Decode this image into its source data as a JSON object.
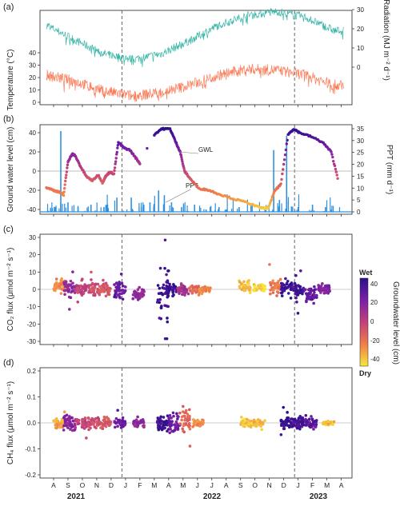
{
  "panel_labels": [
    "(a)",
    "(b)",
    "(c)",
    "(d)"
  ],
  "months": [
    "A",
    "S",
    "O",
    "N",
    "D",
    "J",
    "F",
    "M",
    "A",
    "M",
    "J",
    "J",
    "A",
    "S",
    "O",
    "N",
    "D",
    "J",
    "F",
    "M",
    "A"
  ],
  "years": [
    "2021",
    "2022",
    "2023"
  ],
  "colorbar": {
    "top_label": "Wet",
    "bottom_label": "Dry",
    "title": "Groundwater level (cm)",
    "ticks": [
      "40",
      "20",
      "0",
      "-20",
      "-40"
    ],
    "range": [
      -45,
      45
    ]
  },
  "chart_data": [
    {
      "type": "line",
      "panel": "(a)",
      "series": [
        {
          "name": "Radiation",
          "color": "#3bb6a8",
          "axis": "right",
          "x": [
            0,
            2,
            4,
            6,
            8,
            10,
            12,
            14,
            16,
            18,
            20
          ],
          "values": [
            22,
            14,
            7,
            4,
            7,
            14,
            22,
            27,
            29,
            26,
            19
          ]
        },
        {
          "name": "Temperature",
          "color": "#fb7b58",
          "axis": "left",
          "x": [
            0,
            2,
            4,
            6,
            8,
            10,
            12,
            14,
            16,
            18,
            20
          ],
          "values": [
            22,
            17,
            9,
            5,
            8,
            14,
            22,
            27,
            26,
            22,
            14
          ]
        }
      ],
      "ylabel_left": "Temperature (°C)",
      "ylim_left": [
        0,
        40
      ],
      "yticks_left": [
        "0",
        "10",
        "20",
        "30",
        "40"
      ],
      "ylabel_right": "Radiation (MJ m⁻² d⁻¹)",
      "ylim_right": [
        0,
        30
      ],
      "yticks_right": [
        "0",
        "10",
        "20",
        "30"
      ]
    },
    {
      "type": "scatter",
      "panel": "(b)",
      "series": [
        {
          "name": "GWL",
          "color_by": "Groundwater level",
          "x": [
            0,
            0.5,
            0.9,
            1.2,
            1.5,
            1.8,
            2.0,
            2.4,
            2.8,
            3.2,
            3.6,
            3.9,
            4.1,
            4.4,
            4.7,
            5.0,
            5.4,
            5.8,
            6.2,
            6.5,
            7.5,
            8.0,
            8.6,
            9.0,
            9.3,
            9.6,
            10.0,
            10.6,
            11.3,
            12.0,
            13.0,
            14.0,
            14.8,
            15.4,
            15.9,
            16.3,
            16.8,
            17.2,
            17.6,
            18.4,
            19.2,
            19.8,
            20.3
          ],
          "values": [
            -17,
            -20,
            -22,
            -25,
            10,
            18,
            16,
            4,
            -6,
            -10,
            -4,
            -12,
            -6,
            -1,
            -3,
            30,
            24,
            22,
            14,
            8,
            38,
            44,
            44,
            30,
            20,
            0,
            -8,
            -18,
            -20,
            -24,
            -29,
            -33,
            -38,
            -39,
            -20,
            -14,
            38,
            44,
            40,
            36,
            30,
            20,
            -10
          ]
        },
        {
          "name": "PPT",
          "color": "#2f90e0",
          "axis": "right",
          "x": [
            0.6,
            1.0,
            1.5,
            2.2,
            3.1,
            4.0,
            4.9,
            5.9,
            6.6,
            7.2,
            7.8,
            8.2,
            8.7,
            9.4,
            10.3,
            11.1,
            12.0,
            12.5,
            13.4,
            14.3,
            15.2,
            15.8,
            16.2,
            16.7,
            17.5,
            18.5,
            19.4
          ],
          "values": [
            2,
            34,
            4,
            2,
            3,
            2,
            6,
            6,
            2,
            4,
            9,
            7,
            4,
            2,
            3,
            1,
            2,
            1,
            2,
            3,
            1,
            26,
            5,
            32,
            2,
            3,
            2
          ]
        }
      ],
      "annotations": [
        "GWL",
        "PPT"
      ],
      "ylabel_left": "Ground water level (cm)",
      "ylim_left": [
        -40,
        40
      ],
      "yticks_left": [
        "-40",
        "-20",
        "0",
        "20",
        "40"
      ],
      "ylabel_right": "PPT (mm d⁻¹)",
      "ylim_right": [
        0,
        35
      ],
      "yticks_right": [
        "0",
        "5",
        "10",
        "15",
        "20",
        "25",
        "30",
        "35"
      ]
    },
    {
      "type": "scatter",
      "panel": "(c)",
      "ylabel": "CO₂ flux (μmol m⁻² s⁻¹)",
      "ylim": [
        -30,
        30
      ],
      "yticks": [
        "-30",
        "-20",
        "-10",
        "0",
        "10",
        "20",
        "30"
      ],
      "clusters": [
        {
          "x": 0.9,
          "gwl": -25,
          "mean": 2,
          "spread": 6
        },
        {
          "x": 1.6,
          "gwl": 15,
          "mean": 1,
          "spread": 8
        },
        {
          "x": 2.4,
          "gwl": 0,
          "mean": 0,
          "spread": 5
        },
        {
          "x": 3.3,
          "gwl": -5,
          "mean": 0,
          "spread": 5
        },
        {
          "x": 4.1,
          "gwl": -8,
          "mean": 0,
          "spread": 5
        },
        {
          "x": 5.1,
          "gwl": 28,
          "mean": 0,
          "spread": 7
        },
        {
          "x": 6.4,
          "gwl": 15,
          "mean": -3,
          "spread": 5
        },
        {
          "x": 8.1,
          "gwl": 40,
          "mean": -3,
          "spread": 22
        },
        {
          "x": 8.7,
          "gwl": 40,
          "mean": 0,
          "spread": 6
        },
        {
          "x": 9.5,
          "gwl": 10,
          "mean": 0,
          "spread": 4
        },
        {
          "x": 10.3,
          "gwl": -15,
          "mean": 0,
          "spread": 3
        },
        {
          "x": 11.0,
          "gwl": -25,
          "mean": 0,
          "spread": 2
        },
        {
          "x": 13.8,
          "gwl": -35,
          "mean": 2,
          "spread": 5
        },
        {
          "x": 14.8,
          "gwl": -40,
          "mean": 1,
          "spread": 4
        },
        {
          "x": 15.9,
          "gwl": -20,
          "mean": 1,
          "spread": 5
        },
        {
          "x": 16.7,
          "gwl": 42,
          "mean": 1,
          "spread": 6
        },
        {
          "x": 17.5,
          "gwl": 38,
          "mean": 0,
          "spread": 5
        },
        {
          "x": 18.4,
          "gwl": 30,
          "mean": -3,
          "spread": 7
        },
        {
          "x": 19.3,
          "gwl": 20,
          "mean": 0,
          "spread": 4
        }
      ]
    },
    {
      "type": "scatter",
      "panel": "(d)",
      "ylabel": "CH₄ flux (μmol m⁻² s⁻¹)",
      "ylim": [
        -0.2,
        0.2
      ],
      "yticks": [
        "-0.2",
        "-0.1",
        "0.0",
        "0.1",
        "0.2"
      ],
      "clusters": [
        {
          "x": 0.9,
          "gwl": -30,
          "mean": 0,
          "spread": 0.03
        },
        {
          "x": 1.6,
          "gwl": 18,
          "mean": 0,
          "spread": 0.04
        },
        {
          "x": 2.4,
          "gwl": 0,
          "mean": 0,
          "spread": 0.03
        },
        {
          "x": 3.3,
          "gwl": -5,
          "mean": 0,
          "spread": 0.03
        },
        {
          "x": 4.1,
          "gwl": -8,
          "mean": 0,
          "spread": 0.03
        },
        {
          "x": 5.1,
          "gwl": 28,
          "mean": 0,
          "spread": 0.02
        },
        {
          "x": 6.4,
          "gwl": 15,
          "mean": 0,
          "spread": 0.02
        },
        {
          "x": 8.1,
          "gwl": 40,
          "mean": 0,
          "spread": 0.04
        },
        {
          "x": 8.9,
          "gwl": 25,
          "mean": 0,
          "spread": 0.05
        },
        {
          "x": 9.6,
          "gwl": -15,
          "mean": 0.01,
          "spread": 0.07
        },
        {
          "x": 10.5,
          "gwl": -25,
          "mean": 0,
          "spread": 0.02
        },
        {
          "x": 13.9,
          "gwl": -38,
          "mean": 0,
          "spread": 0.02
        },
        {
          "x": 14.8,
          "gwl": -35,
          "mean": 0,
          "spread": 0.02
        },
        {
          "x": 16.7,
          "gwl": 42,
          "mean": 0,
          "spread": 0.03
        },
        {
          "x": 17.5,
          "gwl": 38,
          "mean": 0,
          "spread": 0.03
        },
        {
          "x": 18.4,
          "gwl": 30,
          "mean": 0,
          "spread": 0.03
        },
        {
          "x": 19.6,
          "gwl": -35,
          "mean": 0,
          "spread": 0.01
        }
      ]
    }
  ]
}
